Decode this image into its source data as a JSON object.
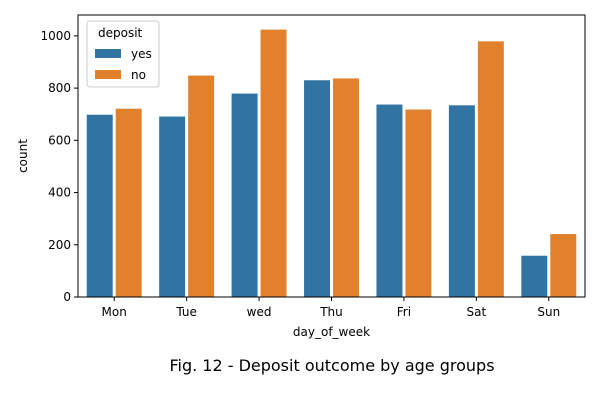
{
  "chart_data": {
    "type": "bar",
    "xlabel": "day_of_week",
    "ylabel": "count",
    "categories": [
      "Mon",
      "Tue",
      "wed",
      "Thu",
      "Fri",
      "Sat",
      "Sun"
    ],
    "ylim": [
      0,
      1080
    ],
    "yticks": [
      0,
      200,
      400,
      600,
      800,
      1000
    ],
    "legend_title": "deposit",
    "legend_position": "top-left",
    "grid": false,
    "series": [
      {
        "name": "yes",
        "color": "#3274a1",
        "values": [
          700,
          693,
          781,
          832,
          739,
          736,
          160
        ]
      },
      {
        "name": "no",
        "color": "#e1812c",
        "values": [
          723,
          850,
          1026,
          839,
          720,
          981,
          243
        ]
      }
    ]
  },
  "caption": "Fig. 12 - Deposit outcome by age groups"
}
